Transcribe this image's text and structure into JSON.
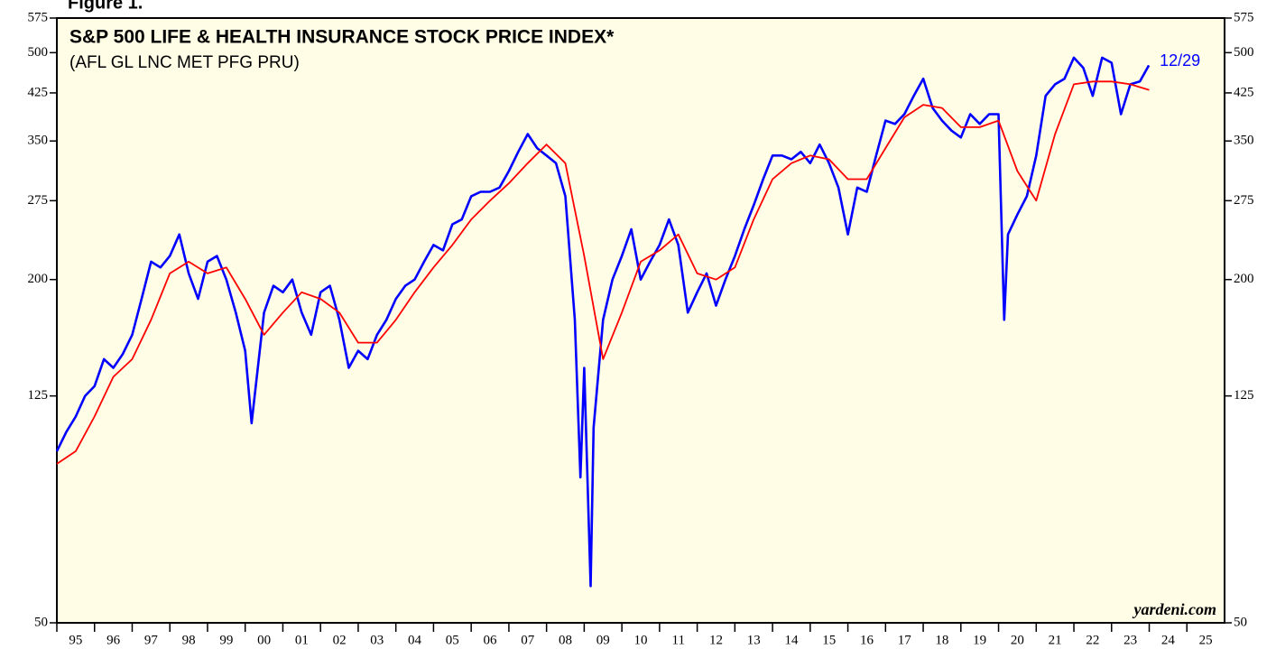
{
  "chart_data": {
    "type": "line",
    "figure_label": "Figure 1.",
    "title": "S&P 500 LIFE & HEALTH INSURANCE STOCK PRICE INDEX*",
    "subtitle": "(AFL GL LNC MET PFG PRU)",
    "end_label": "12/29",
    "source": "yardeni.com",
    "log_scale": true,
    "ylim": [
      50,
      575
    ],
    "yticks": [
      50,
      125,
      200,
      275,
      350,
      425,
      500,
      575
    ],
    "xlim": [
      1995,
      2026
    ],
    "xticks": [
      {
        "value": 1995,
        "label": "95"
      },
      {
        "value": 1996,
        "label": "96"
      },
      {
        "value": 1997,
        "label": "97"
      },
      {
        "value": 1998,
        "label": "98"
      },
      {
        "value": 1999,
        "label": "99"
      },
      {
        "value": 2000,
        "label": "00"
      },
      {
        "value": 2001,
        "label": "01"
      },
      {
        "value": 2002,
        "label": "02"
      },
      {
        "value": 2003,
        "label": "03"
      },
      {
        "value": 2004,
        "label": "04"
      },
      {
        "value": 2005,
        "label": "05"
      },
      {
        "value": 2006,
        "label": "06"
      },
      {
        "value": 2007,
        "label": "07"
      },
      {
        "value": 2008,
        "label": "08"
      },
      {
        "value": 2009,
        "label": "09"
      },
      {
        "value": 2010,
        "label": "10"
      },
      {
        "value": 2011,
        "label": "11"
      },
      {
        "value": 2012,
        "label": "12"
      },
      {
        "value": 2013,
        "label": "13"
      },
      {
        "value": 2014,
        "label": "14"
      },
      {
        "value": 2015,
        "label": "15"
      },
      {
        "value": 2016,
        "label": "16"
      },
      {
        "value": 2017,
        "label": "17"
      },
      {
        "value": 2018,
        "label": "18"
      },
      {
        "value": 2019,
        "label": "19"
      },
      {
        "value": 2020,
        "label": "20"
      },
      {
        "value": 2021,
        "label": "21"
      },
      {
        "value": 2022,
        "label": "22"
      },
      {
        "value": 2023,
        "label": "23"
      },
      {
        "value": 2024,
        "label": "24"
      },
      {
        "value": 2025,
        "label": "25"
      }
    ],
    "series": [
      {
        "color": "#0000ff",
        "x": [
          1995.0,
          1995.25,
          1995.5,
          1995.75,
          1996.0,
          1996.25,
          1996.5,
          1996.75,
          1997.0,
          1997.25,
          1997.5,
          1997.75,
          1998.0,
          1998.25,
          1998.5,
          1998.75,
          1999.0,
          1999.25,
          1999.5,
          1999.75,
          2000.0,
          2000.17,
          2000.5,
          2000.75,
          2001.0,
          2001.25,
          2001.5,
          2001.75,
          2002.0,
          2002.25,
          2002.5,
          2002.75,
          2003.0,
          2003.25,
          2003.5,
          2003.75,
          2004.0,
          2004.25,
          2004.5,
          2004.75,
          2005.0,
          2005.25,
          2005.5,
          2005.75,
          2006.0,
          2006.25,
          2006.5,
          2006.75,
          2007.0,
          2007.25,
          2007.5,
          2007.75,
          2008.0,
          2008.25,
          2008.5,
          2008.75,
          2008.9,
          2009.0,
          2009.17,
          2009.25,
          2009.5,
          2009.75,
          2010.0,
          2010.25,
          2010.5,
          2010.75,
          2011.0,
          2011.25,
          2011.5,
          2011.75,
          2012.0,
          2012.25,
          2012.5,
          2012.75,
          2013.0,
          2013.25,
          2013.5,
          2013.75,
          2014.0,
          2014.25,
          2014.5,
          2014.75,
          2015.0,
          2015.25,
          2015.5,
          2015.75,
          2016.0,
          2016.25,
          2016.5,
          2016.75,
          2017.0,
          2017.25,
          2017.5,
          2017.75,
          2018.0,
          2018.25,
          2018.5,
          2018.75,
          2019.0,
          2019.25,
          2019.5,
          2019.75,
          2020.0,
          2020.15,
          2020.25,
          2020.5,
          2020.75,
          2021.0,
          2021.25,
          2021.5,
          2021.75,
          2022.0,
          2022.25,
          2022.5,
          2022.75,
          2023.0,
          2023.25,
          2023.5,
          2023.75,
          2023.99
        ],
        "values": [
          100,
          108,
          115,
          125,
          130,
          145,
          140,
          148,
          160,
          185,
          215,
          210,
          220,
          240,
          205,
          185,
          215,
          220,
          200,
          175,
          150,
          112,
          175,
          195,
          190,
          200,
          175,
          160,
          190,
          195,
          170,
          140,
          150,
          145,
          160,
          170,
          185,
          195,
          200,
          215,
          230,
          225,
          250,
          255,
          280,
          285,
          285,
          290,
          310,
          335,
          360,
          340,
          330,
          320,
          280,
          170,
          90,
          140,
          58,
          110,
          170,
          200,
          220,
          245,
          200,
          215,
          230,
          255,
          230,
          175,
          190,
          205,
          180,
          200,
          220,
          245,
          270,
          300,
          330,
          330,
          325,
          335,
          320,
          345,
          320,
          290,
          240,
          290,
          285,
          330,
          380,
          375,
          390,
          420,
          450,
          400,
          380,
          365,
          355,
          390,
          375,
          390,
          390,
          170,
          240,
          260,
          280,
          330,
          420,
          440,
          450,
          490,
          470,
          420,
          490,
          480,
          390,
          440,
          445,
          475
        ]
      },
      {
        "color": "#ff0000",
        "x": [
          1995.0,
          1995.5,
          1996.0,
          1996.5,
          1997.0,
          1997.5,
          1998.0,
          1998.5,
          1999.0,
          1999.5,
          2000.0,
          2000.5,
          2001.0,
          2001.5,
          2002.0,
          2002.5,
          2003.0,
          2003.5,
          2004.0,
          2004.5,
          2005.0,
          2005.5,
          2006.0,
          2006.5,
          2007.0,
          2007.5,
          2008.0,
          2008.5,
          2009.0,
          2009.5,
          2010.0,
          2010.5,
          2011.0,
          2011.5,
          2012.0,
          2012.5,
          2013.0,
          2013.5,
          2014.0,
          2014.5,
          2015.0,
          2015.5,
          2016.0,
          2016.5,
          2017.0,
          2017.5,
          2018.0,
          2018.5,
          2019.0,
          2019.5,
          2020.0,
          2020.5,
          2021.0,
          2021.5,
          2022.0,
          2022.5,
          2023.0,
          2023.5,
          2024.0
        ],
        "values": [
          95,
          100,
          115,
          135,
          145,
          170,
          205,
          215,
          205,
          210,
          185,
          160,
          175,
          190,
          185,
          175,
          155,
          155,
          170,
          190,
          210,
          230,
          255,
          275,
          295,
          320,
          345,
          320,
          220,
          145,
          175,
          215,
          225,
          240,
          205,
          200,
          210,
          255,
          300,
          320,
          330,
          325,
          300,
          300,
          340,
          385,
          405,
          400,
          370,
          370,
          380,
          310,
          275,
          360,
          440,
          445,
          445,
          440,
          430
        ]
      }
    ]
  }
}
